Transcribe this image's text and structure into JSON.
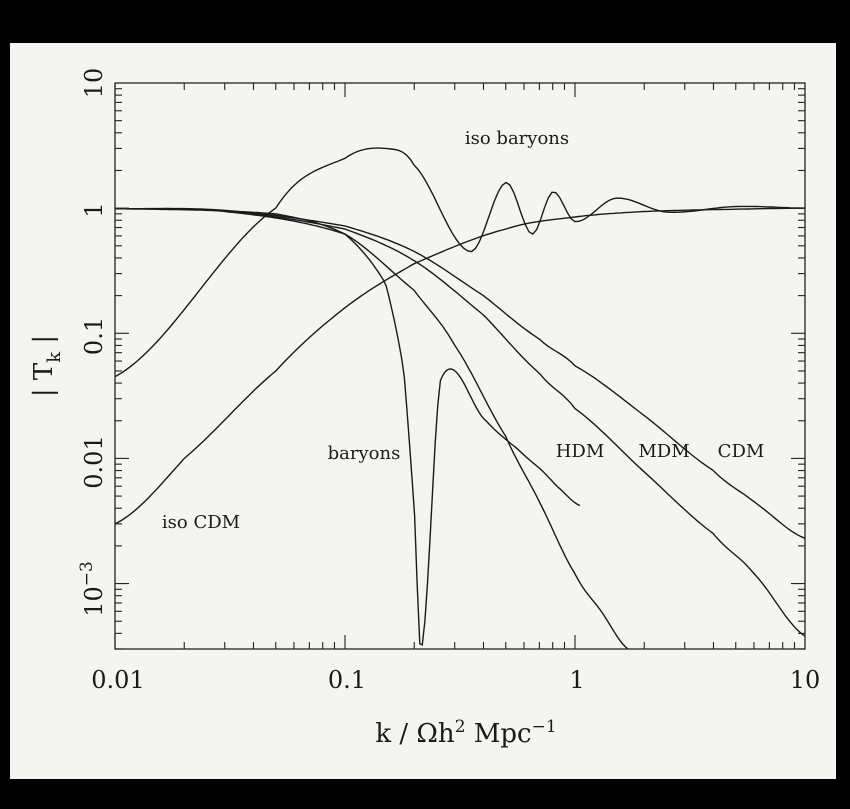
{
  "chart_data": {
    "type": "line",
    "xscale": "log",
    "yscale": "log",
    "xlim": [
      0.01,
      10
    ],
    "ylim": [
      0.0003,
      10
    ],
    "xlabel": "k / Ωh² Mpc⁻¹",
    "ylabel": "| T_k |",
    "x_ticks": [
      "0.01",
      "0.1",
      "1",
      "10"
    ],
    "y_ticks": [
      "10⁻³",
      "0.01",
      "0.1",
      "1",
      "10"
    ],
    "grid": false,
    "series": [
      {
        "name": "CDM",
        "x": [
          0.01,
          0.03,
          0.1,
          0.2,
          0.4,
          0.7,
          1,
          2,
          4,
          6,
          10
        ],
        "y": [
          0.99,
          0.96,
          0.72,
          0.45,
          0.2,
          0.09,
          0.055,
          0.022,
          0.008,
          0.0045,
          0.0023
        ]
      },
      {
        "name": "MDM",
        "x": [
          0.01,
          0.03,
          0.1,
          0.2,
          0.4,
          0.7,
          1,
          2,
          4,
          6,
          10
        ],
        "y": [
          0.99,
          0.95,
          0.68,
          0.38,
          0.14,
          0.048,
          0.025,
          0.0078,
          0.0025,
          0.0012,
          0.00038
        ]
      },
      {
        "name": "HDM",
        "x": [
          0.01,
          0.03,
          0.1,
          0.2,
          0.3,
          0.5,
          0.7,
          1,
          1.3,
          1.7
        ],
        "y": [
          0.99,
          0.94,
          0.62,
          0.22,
          0.08,
          0.015,
          0.0045,
          0.0012,
          0.0006,
          0.0003
        ]
      },
      {
        "name": "iso CDM",
        "x": [
          0.01,
          0.02,
          0.05,
          0.1,
          0.2,
          0.5,
          1,
          2,
          5,
          10
        ],
        "y": [
          0.003,
          0.01,
          0.05,
          0.16,
          0.36,
          0.68,
          0.85,
          0.94,
          0.98,
          1.0
        ]
      },
      {
        "name": "iso baryons",
        "x": [
          0.01,
          0.05,
          0.1,
          0.15,
          0.2,
          0.35,
          0.5,
          0.65,
          0.8,
          1.0,
          1.5,
          2.5,
          5,
          10
        ],
        "y": [
          0.045,
          1.0,
          2.5,
          3.0,
          2.2,
          0.45,
          1.6,
          0.62,
          1.35,
          0.78,
          1.2,
          0.93,
          1.03,
          1.0
        ]
      },
      {
        "name": "baryons",
        "x": [
          0.01,
          0.05,
          0.1,
          0.15,
          0.18,
          0.2,
          0.215,
          0.26,
          0.41,
          0.56,
          0.72,
          0.88,
          1.05
        ],
        "y": [
          0.99,
          0.9,
          0.62,
          0.25,
          0.05,
          0.004,
          0.0003,
          0.042,
          0.02,
          0.012,
          0.008,
          0.0055,
          0.0042
        ]
      }
    ]
  },
  "annotations": {
    "iso_baryons": "iso baryons",
    "baryons": "baryons",
    "hdm": "HDM",
    "mdm": "MDM",
    "cdm": "CDM",
    "iso_cdm": "iso CDM"
  }
}
